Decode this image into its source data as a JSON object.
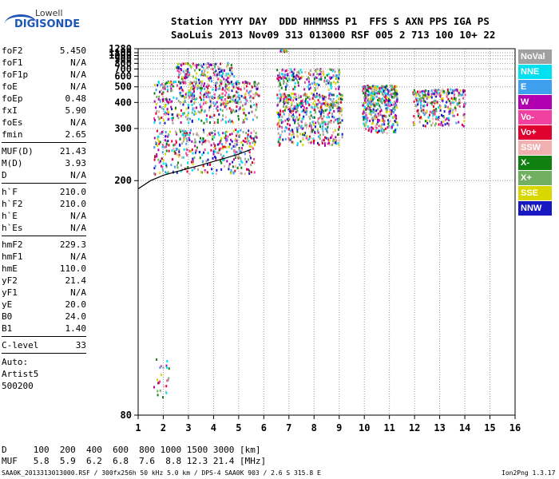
{
  "logo": {
    "line1": "Lowell",
    "line2": "DIGISONDE"
  },
  "header": {
    "line1": "Station YYYY DAY  DDD HHMMSS P1  FFS S AXN PPS IGA PS",
    "line2": "SaoLuis 2013 Nov09 313 013000 RSF 005 2 713 100 10+ 22"
  },
  "params": [
    {
      "k": "foF2",
      "v": "5.450"
    },
    {
      "k": "foF1",
      "v": "N/A"
    },
    {
      "k": "foF1p",
      "v": "N/A"
    },
    {
      "k": "foE",
      "v": "N/A"
    },
    {
      "k": "foEp",
      "v": "0.48"
    },
    {
      "k": "fxI",
      "v": "5.90"
    },
    {
      "k": "foEs",
      "v": "N/A"
    },
    {
      "k": "fmin",
      "v": "2.65"
    },
    {
      "k": "MUF(D)",
      "v": "21.43",
      "sep": true
    },
    {
      "k": "M(D)",
      "v": "3.93"
    },
    {
      "k": "D",
      "v": "N/A"
    },
    {
      "k": "h`F",
      "v": "210.0",
      "sep": true
    },
    {
      "k": "h`F2",
      "v": "210.0"
    },
    {
      "k": "h`E",
      "v": "N/A"
    },
    {
      "k": "h`Es",
      "v": "N/A"
    },
    {
      "k": "hmF2",
      "v": "229.3",
      "sep": true
    },
    {
      "k": "hmF1",
      "v": "N/A"
    },
    {
      "k": "hmE",
      "v": "110.0"
    },
    {
      "k": "yF2",
      "v": "21.4"
    },
    {
      "k": "yF1",
      "v": "N/A"
    },
    {
      "k": "yE",
      "v": "20.0"
    },
    {
      "k": "B0",
      "v": "24.0"
    },
    {
      "k": "B1",
      "v": "1.40"
    },
    {
      "k": "C-level",
      "v": "33",
      "sep": true
    }
  ],
  "auto": {
    "line1": "Auto:",
    "line2": "Artist5",
    "line3": "500200"
  },
  "legend": [
    {
      "label": "NoVal",
      "color": "#a0a0a0"
    },
    {
      "label": "NNE",
      "color": "#00e0f0"
    },
    {
      "label": "E",
      "color": "#3fa0f0"
    },
    {
      "label": "W",
      "color": "#b000b0"
    },
    {
      "label": "Vo-",
      "color": "#f040a0"
    },
    {
      "label": "Vo+",
      "color": "#e00030"
    },
    {
      "label": "SSW",
      "color": "#f0b0b0"
    },
    {
      "label": "X-",
      "color": "#108010"
    },
    {
      "label": "X+",
      "color": "#70b060"
    },
    {
      "label": "SSE",
      "color": "#d8d800"
    },
    {
      "label": "NNW",
      "color": "#1818c0"
    }
  ],
  "chart_data": {
    "type": "scatter",
    "title": "",
    "xlabel": "",
    "ylabel": "",
    "xlim": [
      1,
      16
    ],
    "ylim": [
      80,
      1280
    ],
    "yscale": "reciprocal",
    "x_ticks": [
      "1",
      "2",
      "3",
      "4",
      "5",
      "6",
      "7",
      "8",
      "9",
      "10",
      "11",
      "12",
      "13",
      "14",
      "15",
      "16"
    ],
    "y_ticks": [
      "80",
      "200",
      "300",
      "400",
      "500",
      "600",
      "700",
      "800",
      "900",
      "1000",
      "1100",
      "1280"
    ],
    "grid": true,
    "profile_curve": {
      "x": [
        1.0,
        1.5,
        2.0,
        2.5,
        3.0,
        3.5,
        4.0,
        4.5,
        5.0,
        5.5
      ],
      "y": [
        190,
        200,
        207,
        212,
        217,
        222,
        228,
        234,
        241,
        250
      ]
    },
    "clusters": [
      {
        "name": "low-E",
        "x0": 1.6,
        "x1": 2.2,
        "y0": 83,
        "y1": 95,
        "n": 25
      },
      {
        "name": "F-trace-1",
        "x0": 1.6,
        "x1": 5.7,
        "y0": 210,
        "y1": 300,
        "n": 420
      },
      {
        "name": "F-high-1",
        "x0": 1.6,
        "x1": 5.7,
        "y0": 320,
        "y1": 440,
        "n": 280
      },
      {
        "name": "F2-2hop",
        "x0": 1.6,
        "x1": 5.8,
        "y0": 430,
        "y1": 560,
        "n": 260
      },
      {
        "name": "sparse-upper",
        "x0": 2.5,
        "x1": 4.8,
        "y0": 560,
        "y1": 830,
        "n": 150
      },
      {
        "name": "F-trace-2",
        "x0": 6.5,
        "x1": 9.1,
        "y0": 260,
        "y1": 460,
        "n": 520
      },
      {
        "name": "mid-upper",
        "x0": 6.5,
        "x1": 9.0,
        "y0": 480,
        "y1": 720,
        "n": 180
      },
      {
        "name": "block-10",
        "x0": 9.9,
        "x1": 11.3,
        "y0": 290,
        "y1": 520,
        "n": 420
      },
      {
        "name": "block-12",
        "x0": 11.9,
        "x1": 14.0,
        "y0": 310,
        "y1": 490,
        "n": 300
      },
      {
        "name": "top-spike",
        "x0": 6.6,
        "x1": 6.9,
        "y0": 1180,
        "y1": 1280,
        "n": 12
      }
    ],
    "colors": [
      "#a0a0a0",
      "#00e0f0",
      "#3fa0f0",
      "#b000b0",
      "#f040a0",
      "#e00030",
      "#f0b0b0",
      "#108010",
      "#70b060",
      "#d8d800",
      "#1818c0"
    ]
  },
  "footer": {
    "d_row": "D     100  200  400  600  800 1000 1500 3000 [km]",
    "muf_row": "MUF   5.8  5.9  6.2  6.8  7.6  8.8 12.3 21.4 [MHz]",
    "file_info": "SAA0K_2013313013000.RSF / 300fx256h 50 kHz 5.0 km / DPS-4 SAA0K 903 / 2.6 S 315.8 E",
    "version": "Ion2Png 1.3.17"
  }
}
